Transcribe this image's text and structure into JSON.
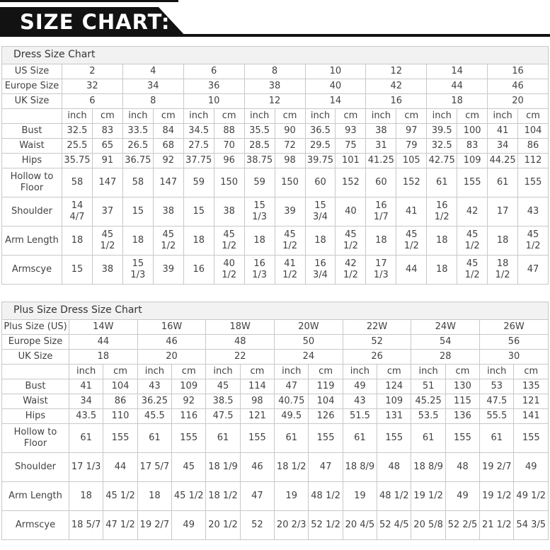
{
  "banner": {
    "title": "SIZE CHART:",
    "bg_color": "#121212",
    "text_color": "#ffffff"
  },
  "theme": {
    "band_bg": "#f2f2f2",
    "border_color": "#c8c8c8",
    "text_color": "#424242"
  },
  "tables": [
    {
      "title": "Dress Size Chart",
      "size_rows": [
        {
          "label": "US Size",
          "values": [
            "2",
            "4",
            "6",
            "8",
            "10",
            "12",
            "14",
            "16"
          ]
        },
        {
          "label": "Europe Size",
          "values": [
            "32",
            "34",
            "36",
            "38",
            "40",
            "42",
            "44",
            "46"
          ]
        },
        {
          "label": "UK Size",
          "values": [
            "6",
            "8",
            "10",
            "12",
            "14",
            "16",
            "18",
            "20"
          ]
        }
      ],
      "unit_headers": [
        "inch",
        "cm"
      ],
      "measure_rows": [
        {
          "label": "Bust",
          "tall": false,
          "cells": [
            [
              "32.5",
              "83"
            ],
            [
              "33.5",
              "84"
            ],
            [
              "34.5",
              "88"
            ],
            [
              "35.5",
              "90"
            ],
            [
              "36.5",
              "93"
            ],
            [
              "38",
              "97"
            ],
            [
              "39.5",
              "100"
            ],
            [
              "41",
              "104"
            ]
          ]
        },
        {
          "label": "Waist",
          "tall": false,
          "cells": [
            [
              "25.5",
              "65"
            ],
            [
              "26.5",
              "68"
            ],
            [
              "27.5",
              "70"
            ],
            [
              "28.5",
              "72"
            ],
            [
              "29.5",
              "75"
            ],
            [
              "31",
              "79"
            ],
            [
              "32.5",
              "83"
            ],
            [
              "34",
              "86"
            ]
          ]
        },
        {
          "label": "Hips",
          "tall": false,
          "cells": [
            [
              "35.75",
              "91"
            ],
            [
              "36.75",
              "92"
            ],
            [
              "37.75",
              "96"
            ],
            [
              "38.75",
              "98"
            ],
            [
              "39.75",
              "101"
            ],
            [
              "41.25",
              "105"
            ],
            [
              "42.75",
              "109"
            ],
            [
              "44.25",
              "112"
            ]
          ]
        },
        {
          "label": "Hollow to Floor",
          "tall": true,
          "cells": [
            [
              "58",
              "147"
            ],
            [
              "58",
              "147"
            ],
            [
              "59",
              "150"
            ],
            [
              "59",
              "150"
            ],
            [
              "60",
              "152"
            ],
            [
              "60",
              "152"
            ],
            [
              "61",
              "155"
            ],
            [
              "61",
              "155"
            ]
          ]
        },
        {
          "label": "Shoulder",
          "tall": true,
          "cells": [
            [
              "14 4/7",
              "37"
            ],
            [
              "15",
              "38"
            ],
            [
              "15",
              "38"
            ],
            [
              "15 1/3",
              "39"
            ],
            [
              "15 3/4",
              "40"
            ],
            [
              "16 1/7",
              "41"
            ],
            [
              "16 1/2",
              "42"
            ],
            [
              "17",
              "43"
            ]
          ]
        },
        {
          "label": "Arm Length",
          "tall": true,
          "cells": [
            [
              "18",
              "45 1/2"
            ],
            [
              "18",
              "45 1/2"
            ],
            [
              "18",
              "45 1/2"
            ],
            [
              "18",
              "45 1/2"
            ],
            [
              "18",
              "45 1/2"
            ],
            [
              "18",
              "45 1/2"
            ],
            [
              "18",
              "45 1/2"
            ],
            [
              "18",
              "45 1/2"
            ]
          ]
        },
        {
          "label": "Armscye",
          "tall": true,
          "cells": [
            [
              "15",
              "38"
            ],
            [
              "15 1/3",
              "39"
            ],
            [
              "16",
              "40 1/2"
            ],
            [
              "16 1/3",
              "41 1/2"
            ],
            [
              "16 3/4",
              "42 1/2"
            ],
            [
              "17 1/3",
              "44"
            ],
            [
              "18",
              "45 1/2"
            ],
            [
              "18 1/2",
              "47"
            ]
          ]
        }
      ]
    },
    {
      "title": "Plus Size Dress Size Chart",
      "size_rows": [
        {
          "label": "Plus Size (US)",
          "values": [
            "14W",
            "16W",
            "18W",
            "20W",
            "22W",
            "24W",
            "26W"
          ]
        },
        {
          "label": "Europe Size",
          "values": [
            "44",
            "46",
            "48",
            "50",
            "52",
            "54",
            "56"
          ]
        },
        {
          "label": "UK Size",
          "values": [
            "18",
            "20",
            "22",
            "24",
            "26",
            "28",
            "30"
          ]
        }
      ],
      "unit_headers": [
        "inch",
        "cm"
      ],
      "measure_rows": [
        {
          "label": "Bust",
          "tall": false,
          "cells": [
            [
              "41",
              "104"
            ],
            [
              "43",
              "109"
            ],
            [
              "45",
              "114"
            ],
            [
              "47",
              "119"
            ],
            [
              "49",
              "124"
            ],
            [
              "51",
              "130"
            ],
            [
              "53",
              "135"
            ]
          ]
        },
        {
          "label": "Waist",
          "tall": false,
          "cells": [
            [
              "34",
              "86"
            ],
            [
              "36.25",
              "92"
            ],
            [
              "38.5",
              "98"
            ],
            [
              "40.75",
              "104"
            ],
            [
              "43",
              "109"
            ],
            [
              "45.25",
              "115"
            ],
            [
              "47.5",
              "121"
            ]
          ]
        },
        {
          "label": "Hips",
          "tall": false,
          "cells": [
            [
              "43.5",
              "110"
            ],
            [
              "45.5",
              "116"
            ],
            [
              "47.5",
              "121"
            ],
            [
              "49.5",
              "126"
            ],
            [
              "51.5",
              "131"
            ],
            [
              "53.5",
              "136"
            ],
            [
              "55.5",
              "141"
            ]
          ]
        },
        {
          "label": "Hollow to Floor",
          "tall": true,
          "cells": [
            [
              "61",
              "155"
            ],
            [
              "61",
              "155"
            ],
            [
              "61",
              "155"
            ],
            [
              "61",
              "155"
            ],
            [
              "61",
              "155"
            ],
            [
              "61",
              "155"
            ],
            [
              "61",
              "155"
            ]
          ]
        },
        {
          "label": "Shoulder",
          "tall": true,
          "cells": [
            [
              "17 1/3",
              "44"
            ],
            [
              "17 5/7",
              "45"
            ],
            [
              "18 1/9",
              "46"
            ],
            [
              "18 1/2",
              "47"
            ],
            [
              "18 8/9",
              "48"
            ],
            [
              "18 8/9",
              "48"
            ],
            [
              "19 2/7",
              "49"
            ]
          ]
        },
        {
          "label": "Arm Length",
          "tall": true,
          "cells": [
            [
              "18",
              "45 1/2"
            ],
            [
              "18",
              "45 1/2"
            ],
            [
              "18 1/2",
              "47"
            ],
            [
              "19",
              "48 1/2"
            ],
            [
              "19",
              "48 1/2"
            ],
            [
              "19 1/2",
              "49"
            ],
            [
              "19 1/2",
              "49 1/2"
            ]
          ]
        },
        {
          "label": "Armscye",
          "tall": true,
          "cells": [
            [
              "18 5/7",
              "47 1/2"
            ],
            [
              "19 2/7",
              "49"
            ],
            [
              "20 1/2",
              "52"
            ],
            [
              "20 2/3",
              "52 1/2"
            ],
            [
              "20 4/5",
              "52 4/5"
            ],
            [
              "20 5/8",
              "52 2/5"
            ],
            [
              "21 1/2",
              "54 3/5"
            ]
          ]
        }
      ]
    }
  ]
}
